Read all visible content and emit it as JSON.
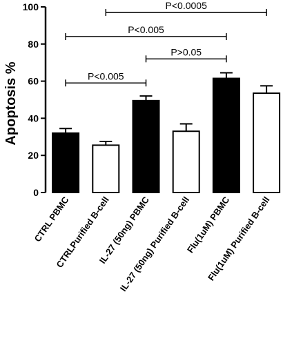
{
  "chart_data": {
    "type": "bar",
    "ylabel": "Apoptosis %",
    "ylim": [
      0,
      100
    ],
    "yticks": [
      0,
      20,
      40,
      60,
      80,
      100
    ],
    "categories": [
      "CTRL PBMC",
      "CTRLPurified B-cell",
      "IL-27 (50ng) PBMC",
      "IL-27 (50ng) Purified B-cell",
      "Flu(1uM) PBMC",
      "Flu(1uM) Purified B-cell"
    ],
    "values": [
      32,
      25.5,
      49.5,
      33,
      61.5,
      53.5
    ],
    "errors": [
      2.5,
      2,
      2.5,
      4,
      3,
      4
    ],
    "bar_fills": [
      "#000000",
      "#ffffff",
      "#000000",
      "#ffffff",
      "#000000",
      "#ffffff"
    ],
    "comparisons": [
      {
        "from": 0,
        "to": 2,
        "y": 59,
        "label": "P<0.005"
      },
      {
        "from": 2,
        "to": 4,
        "y": 72,
        "label": "P>0.05"
      },
      {
        "from": 0,
        "to": 4,
        "y": 84,
        "label": "P<0.005"
      },
      {
        "from": 1,
        "to": 5,
        "y": 97,
        "label": "P<0.0005"
      }
    ]
  }
}
